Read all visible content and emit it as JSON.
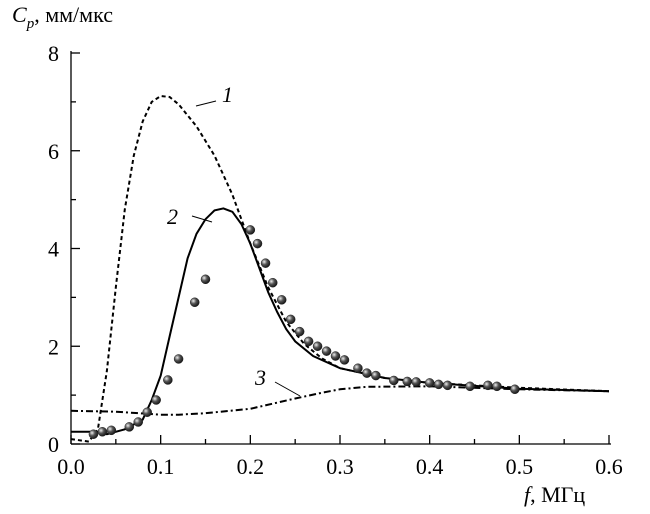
{
  "chart_data": {
    "type": "line",
    "ylabel_symbol": "C",
    "ylabel_subscript": "p",
    "ylabel_unit": ", мм/мкс",
    "xlabel_symbol": "f",
    "xlabel_unit": ", МГц",
    "xlim": [
      0,
      0.6
    ],
    "ylim": [
      0,
      8
    ],
    "xticks": [
      {
        "value": 0,
        "label": "0.0"
      },
      0.1,
      0.2,
      0.3,
      0.4,
      0.5,
      0.6
    ],
    "yticks": [
      0,
      2,
      4,
      6,
      8
    ],
    "series": [
      {
        "name": "1",
        "color": "#000000",
        "dash": "4,3",
        "x": [
          0,
          0.02,
          0.03,
          0.04,
          0.05,
          0.06,
          0.07,
          0.08,
          0.09,
          0.1,
          0.11,
          0.12,
          0.14,
          0.16,
          0.18,
          0.2,
          0.22,
          0.24,
          0.26,
          0.28,
          0.3,
          0.35,
          0.4,
          0.5,
          0.6
        ],
        "values": [
          0.1,
          0.05,
          0.3,
          1.5,
          3.2,
          4.8,
          5.9,
          6.6,
          7.0,
          7.12,
          7.1,
          6.95,
          6.5,
          5.9,
          5.1,
          4.1,
          3.2,
          2.5,
          2.05,
          1.75,
          1.55,
          1.35,
          1.25,
          1.15,
          1.08
        ]
      },
      {
        "name": "2",
        "color": "#000000",
        "dash": "none",
        "x": [
          0,
          0.03,
          0.04,
          0.06,
          0.08,
          0.09,
          0.1,
          0.11,
          0.12,
          0.13,
          0.14,
          0.15,
          0.16,
          0.17,
          0.18,
          0.19,
          0.2,
          0.21,
          0.22,
          0.23,
          0.24,
          0.25,
          0.27,
          0.3,
          0.35,
          0.4,
          0.5,
          0.6
        ],
        "values": [
          0.25,
          0.25,
          0.2,
          0.3,
          0.5,
          0.9,
          1.4,
          2.2,
          3.0,
          3.8,
          4.3,
          4.6,
          4.78,
          4.82,
          4.75,
          4.5,
          4.1,
          3.6,
          3.1,
          2.7,
          2.35,
          2.1,
          1.8,
          1.55,
          1.35,
          1.25,
          1.13,
          1.08
        ]
      },
      {
        "name": "3",
        "color": "#000000",
        "dash": "7,3,2,3",
        "x": [
          0,
          0.05,
          0.1,
          0.12,
          0.15,
          0.2,
          0.25,
          0.28,
          0.3,
          0.33,
          0.4,
          0.5,
          0.6
        ],
        "values": [
          0.68,
          0.66,
          0.6,
          0.6,
          0.63,
          0.72,
          0.93,
          1.05,
          1.12,
          1.17,
          1.18,
          1.12,
          1.08
        ]
      }
    ],
    "points": {
      "color": "#222222",
      "x": [
        0.025,
        0.035,
        0.045,
        0.065,
        0.075,
        0.085,
        0.095,
        0.108,
        0.12,
        0.138,
        0.15,
        0.2,
        0.208,
        0.217,
        0.225,
        0.235,
        0.245,
        0.255,
        0.265,
        0.275,
        0.285,
        0.295,
        0.305,
        0.32,
        0.33,
        0.34,
        0.36,
        0.375,
        0.385,
        0.4,
        0.41,
        0.42,
        0.445,
        0.465,
        0.475,
        0.495
      ],
      "values": [
        0.2,
        0.25,
        0.28,
        0.35,
        0.45,
        0.65,
        0.9,
        1.31,
        1.74,
        2.9,
        3.37,
        4.38,
        4.1,
        3.7,
        3.3,
        2.95,
        2.55,
        2.3,
        2.1,
        2.0,
        1.9,
        1.8,
        1.72,
        1.55,
        1.45,
        1.4,
        1.3,
        1.28,
        1.27,
        1.25,
        1.22,
        1.2,
        1.18,
        1.2,
        1.18,
        1.12
      ]
    }
  }
}
